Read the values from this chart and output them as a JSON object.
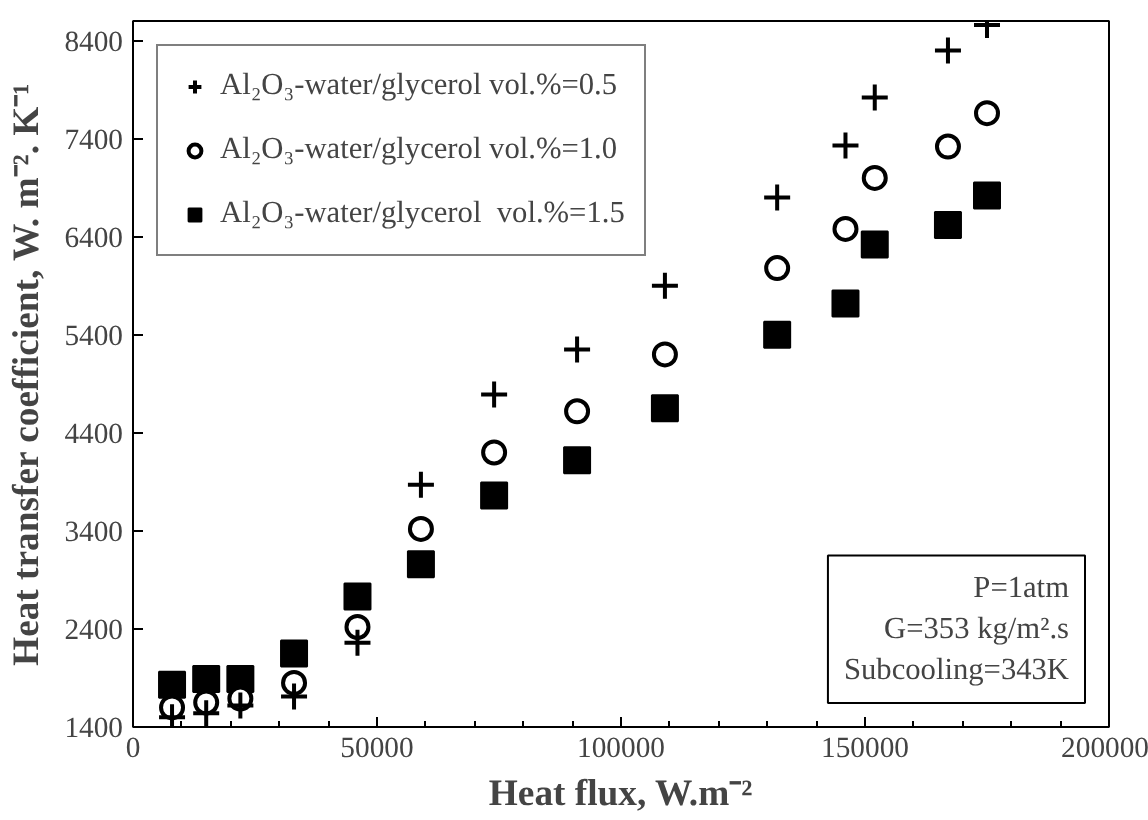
{
  "chart_data": {
    "type": "scatter",
    "xlabel": "Heat flux, W.m⁻²",
    "ylabel": "Heat transfer coefficient, W. m⁻². K⁻¹",
    "x": [
      8000,
      15000,
      22000,
      33000,
      46000,
      59000,
      74000,
      91000,
      109000,
      132000,
      146000,
      152000,
      167000,
      175000
    ],
    "series": [
      {
        "name": "Al₂O₃-water/glycerol vol.%=0.5",
        "color": "#000000",
        "marker": "cross",
        "values": [
          1500,
          1540,
          1620,
          1710,
          2260,
          3870,
          4790,
          5250,
          5900,
          6800,
          7330,
          7820,
          8300,
          8560
        ]
      },
      {
        "name": "Al₂O₃-water/glycerol vol.%=1.0",
        "color": "#000000",
        "marker": "circle",
        "values": [
          1600,
          1650,
          1690,
          1850,
          2420,
          3420,
          4200,
          4620,
          5200,
          6080,
          6480,
          7000,
          7320,
          7660
        ]
      },
      {
        "name": "Al₂O₃-water/glycerol  vol.%=1.5",
        "color": "#000000",
        "marker": "square",
        "values": [
          1830,
          1890,
          1890,
          2150,
          2730,
          3060,
          3760,
          4120,
          4650,
          5400,
          5720,
          6320,
          6520,
          6820
        ]
      }
    ],
    "xlim": [
      0,
      200000
    ],
    "xticks": [
      0,
      50000,
      100000,
      150000,
      200000
    ],
    "ylim": [
      1400,
      8600
    ],
    "yticks": [
      1400,
      2400,
      3400,
      4400,
      5400,
      6400,
      7400,
      8400
    ],
    "grid": false,
    "legend": "top left",
    "annotations": [
      "P=1atm",
      "G=353 kg/m².s",
      "Subcooling=343K"
    ]
  }
}
